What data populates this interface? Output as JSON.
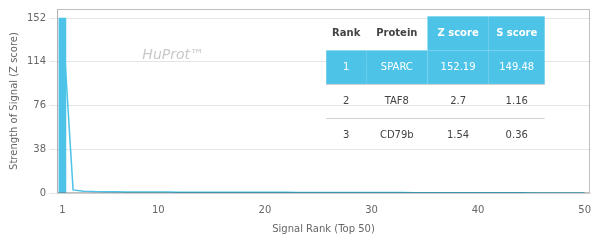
{
  "chart_data": {
    "type": "line",
    "xlabel": "Signal Rank (Top 50)",
    "ylabel": "Strength of Signal (Z score)",
    "annotations": [
      {
        "text": "HuProt™"
      }
    ],
    "series": [
      {
        "type": "bar",
        "color": "#4dc3e8",
        "x": [
          1
        ],
        "values": [
          152.19
        ]
      },
      {
        "type": "line",
        "color": "#4dc3e8",
        "x": [
          1,
          2,
          3,
          4,
          5,
          6,
          7,
          8,
          9,
          10,
          11,
          12,
          13,
          14,
          15,
          16,
          17,
          18,
          19,
          20,
          21,
          22,
          23,
          24,
          25,
          26,
          27,
          28,
          29,
          30,
          31,
          32,
          33,
          34,
          35,
          36,
          37,
          38,
          39,
          40,
          41,
          42,
          43,
          44,
          45,
          46,
          47,
          48,
          49,
          50
        ],
        "values": [
          152.19,
          2.7,
          1.54,
          1.2,
          1.1,
          1.0,
          0.95,
          0.9,
          0.85,
          0.8,
          0.78,
          0.76,
          0.74,
          0.72,
          0.7,
          0.68,
          0.66,
          0.64,
          0.62,
          0.6,
          0.58,
          0.56,
          0.54,
          0.52,
          0.5,
          0.48,
          0.46,
          0.44,
          0.42,
          0.4,
          0.38,
          0.36,
          0.34,
          0.32,
          0.3,
          0.28,
          0.26,
          0.24,
          0.22,
          0.2,
          0.18,
          0.16,
          0.14,
          0.12,
          0.1,
          0.08,
          0.06,
          0.04,
          0.02,
          0.01
        ]
      }
    ],
    "xlim": [
      0.5,
      50.5
    ],
    "xticks": [
      1,
      10,
      20,
      30,
      40,
      50
    ],
    "ylim": [
      0,
      160
    ],
    "yticks": [
      0,
      38,
      76,
      114,
      152
    ],
    "grid": true,
    "table": {
      "headers": [
        "Rank",
        "Protein",
        "Z score",
        "S score"
      ],
      "rows": [
        [
          1,
          "SPARC",
          152.19,
          149.48
        ],
        [
          2,
          "TAF8",
          2.7,
          1.16
        ],
        [
          3,
          "CD79b",
          1.54,
          0.36
        ]
      ]
    }
  }
}
